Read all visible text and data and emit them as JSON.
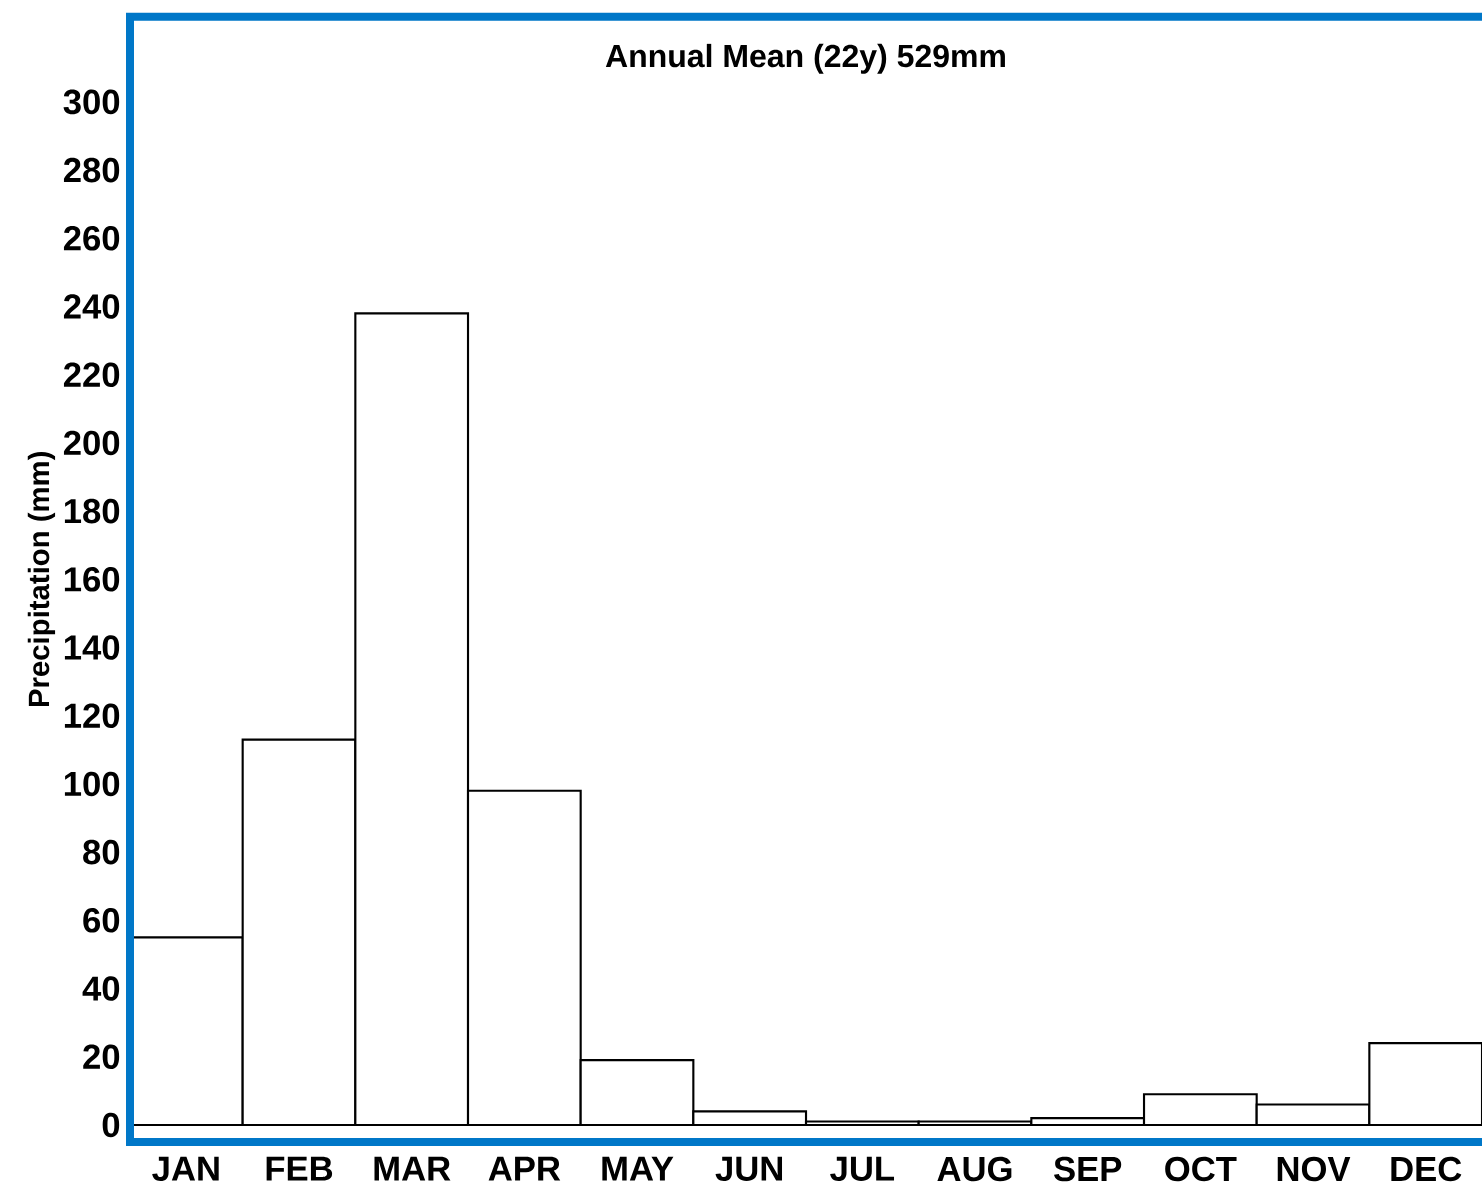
{
  "chart_data": {
    "type": "bar",
    "title": "Annual Mean (22y) 529mm",
    "ylabel": "Precipitation (mm)",
    "categories": [
      "JAN",
      "FEB",
      "MAR",
      "APR",
      "MAY",
      "JUN",
      "JUL",
      "AUG",
      "SEP",
      "OCT",
      "NOV",
      "DEC"
    ],
    "values": [
      55,
      113,
      238,
      98,
      19,
      4,
      1,
      1,
      2,
      9,
      6,
      24
    ],
    "color": "#ffffff",
    "ylim": [
      -5,
      325
    ],
    "yticks": [
      0,
      20,
      40,
      60,
      80,
      100,
      120,
      140,
      160,
      180,
      200,
      220,
      240,
      260,
      280,
      300
    ],
    "grid": false
  }
}
